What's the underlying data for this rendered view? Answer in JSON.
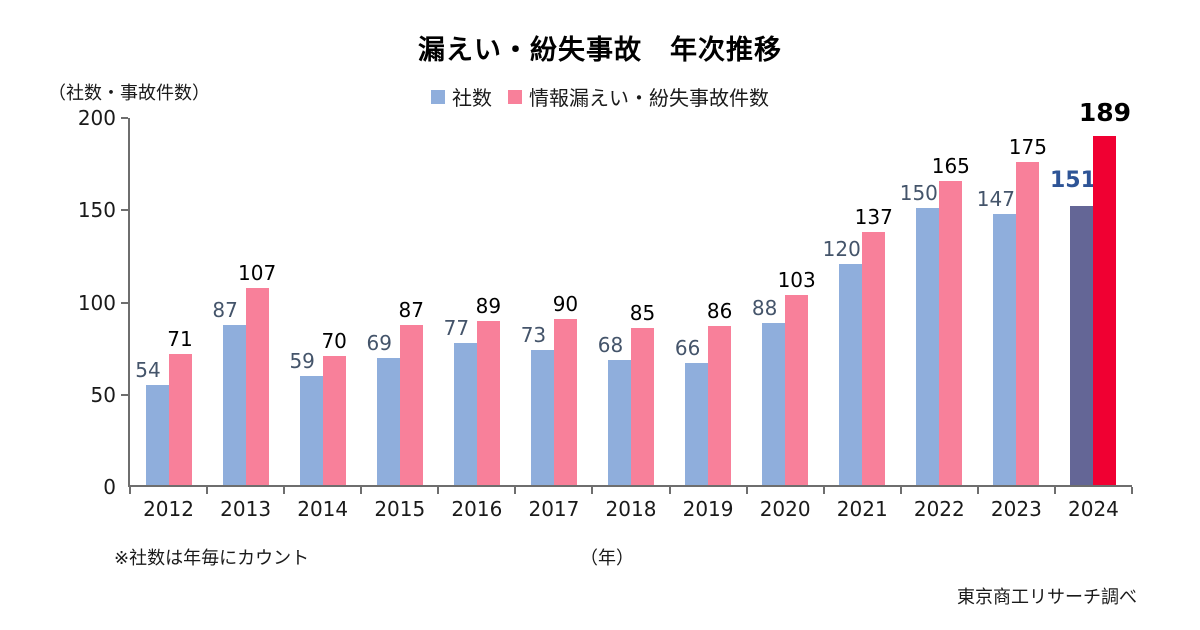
{
  "title": "漏えい・紛失事故　年次推移",
  "unit_label": "（社数・事故件数）",
  "footnote": "※社数は年毎にカウント",
  "x_unit": "（年）",
  "source": "東京商工リサーチ調べ",
  "colors": {
    "company_bar": "#8FAEDC",
    "incident_bar": "#F8809A",
    "company_bar_highlight": "#646696",
    "incident_bar_highlight": "#F00032",
    "company_label": "#44546A",
    "company_label_highlight": "#2E5496",
    "incident_label": "#000000",
    "axis": "#6e6e6e"
  },
  "chart_data": {
    "type": "bar",
    "title": "漏えい・紛失事故　年次推移",
    "xlabel": "（年）",
    "ylabel": "（社数・事故件数）",
    "ylim": [
      0,
      200
    ],
    "yticks": [
      0,
      50,
      100,
      150,
      200
    ],
    "grid": false,
    "legend_position": "top",
    "highlight_category": "2024",
    "categories": [
      "2012",
      "2013",
      "2014",
      "2015",
      "2016",
      "2017",
      "2018",
      "2019",
      "2020",
      "2021",
      "2022",
      "2023",
      "2024"
    ],
    "series": [
      {
        "name": "社数",
        "color": "#8FAEDC",
        "highlight_color": "#646696",
        "label_color": "#44546A",
        "highlight_label_color": "#2E5496",
        "values": [
          54,
          87,
          59,
          69,
          77,
          73,
          68,
          66,
          88,
          120,
          150,
          147,
          151
        ]
      },
      {
        "name": "情報漏えい・紛失事故件数",
        "color": "#F8809A",
        "highlight_color": "#F00032",
        "label_color": "#000000",
        "highlight_label_color": "#000000",
        "values": [
          71,
          107,
          70,
          87,
          89,
          90,
          85,
          86,
          103,
          137,
          165,
          175,
          189
        ]
      }
    ]
  }
}
